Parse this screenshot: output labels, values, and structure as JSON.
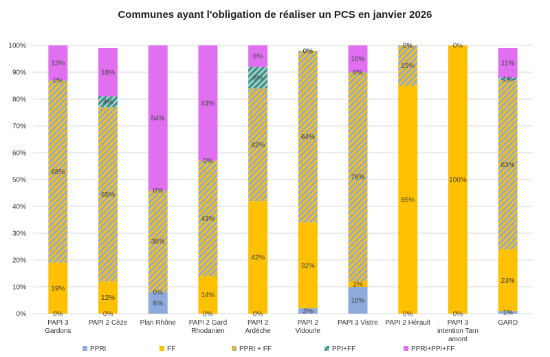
{
  "chart_data": {
    "type": "bar",
    "stacked": true,
    "percent_stacked": true,
    "title": "Communes ayant l'obligation de réaliser un PCS en janvier 2026",
    "categories": [
      [
        "PAPI 3",
        "Gardons"
      ],
      [
        "PAPI 2 Cèze"
      ],
      [
        "Plan Rhône"
      ],
      [
        "PAPI 2 Gard",
        "Rhodanien"
      ],
      [
        "PAPI 2",
        "Ardèche"
      ],
      [
        "PAPI 2",
        "Vidourle"
      ],
      [
        "PAPI 3 Vistre"
      ],
      [
        "PAPI 2 Hérault"
      ],
      [
        "PAPI 3",
        "intention Tarn",
        "amont"
      ],
      [
        "GARD"
      ]
    ],
    "y_ticks": [
      "0%",
      "10%",
      "20%",
      "30%",
      "40%",
      "50%",
      "60%",
      "70%",
      "80%",
      "90%",
      "100%"
    ],
    "ylim": [
      0,
      100
    ],
    "grid": true,
    "legend_position": "bottom",
    "series": [
      {
        "name": "PPRI",
        "color": "#8faadc",
        "pattern": "solid",
        "values": [
          0,
          0,
          8,
          0,
          0,
          2,
          10,
          0,
          0,
          1
        ],
        "labels": [
          "0%",
          "0%",
          "8%",
          "0%",
          "0%",
          "2%",
          "10%",
          "0%",
          "0%",
          "1%"
        ]
      },
      {
        "name": "FF",
        "color": "#ffc000",
        "pattern": "solid",
        "values": [
          19,
          12,
          0,
          14,
          42,
          32,
          2,
          85,
          100,
          23
        ],
        "labels": [
          "19%",
          "12%",
          "0%",
          "14%",
          "42%",
          "32%",
          "2%",
          "85%",
          "100%",
          "23%"
        ]
      },
      {
        "name": "PPRI + FF",
        "color": "#ffc000",
        "stripe": "#8faadc",
        "pattern": "stripes",
        "values": [
          68,
          65,
          38,
          43,
          42,
          64,
          78,
          15,
          0,
          63
        ],
        "labels": [
          "68%",
          "65%",
          "38%",
          "43%",
          "42%",
          "64%",
          "78%",
          "15%",
          "",
          "63%"
        ]
      },
      {
        "name": "PPI+FF",
        "color": "#2e9b8f",
        "stripe": "#c8c8c8",
        "pattern": "stripes",
        "values": [
          0,
          4,
          0,
          0,
          8,
          0,
          0,
          0,
          0,
          1
        ],
        "labels": [
          "0%",
          "4%",
          "0%",
          "0%",
          "8%",
          "0%",
          "0%",
          "0%",
          "",
          "1%"
        ]
      },
      {
        "name": "PPRI+PPI+FF",
        "color": "#e070f0",
        "pattern": "solid",
        "values": [
          13,
          18,
          54,
          43,
          8,
          0,
          10,
          0,
          0,
          11
        ],
        "labels": [
          "13%",
          "18%",
          "54%",
          "43%",
          "8%",
          "0%",
          "10%",
          "0%",
          "0%",
          "11%"
        ]
      }
    ]
  }
}
